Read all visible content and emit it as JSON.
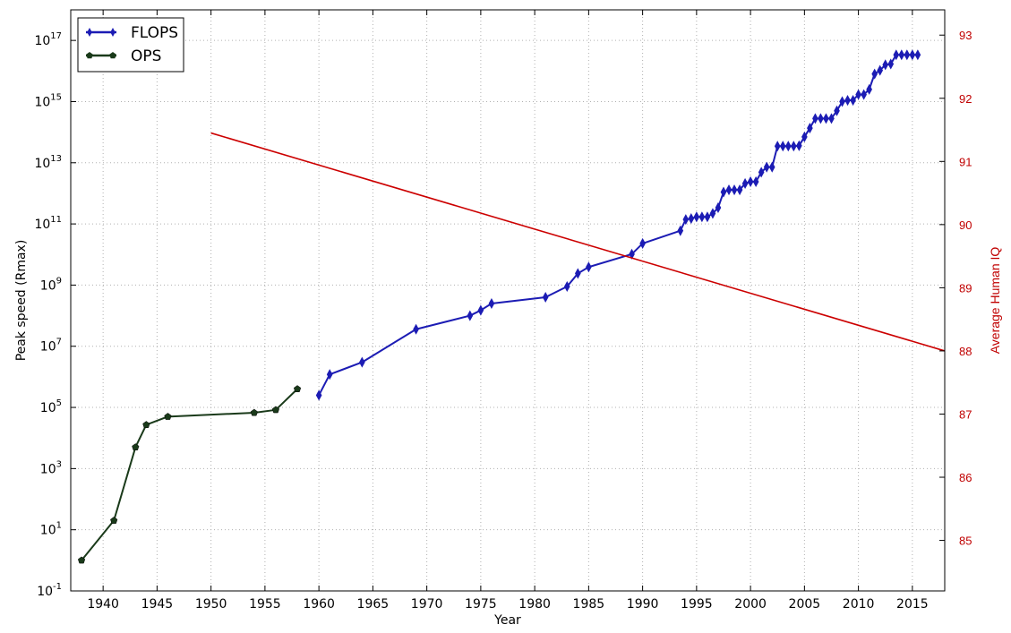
{
  "chart_data": {
    "type": "line",
    "xlabel": "Year",
    "ylabel": "Peak speed (Rmax)",
    "y2label": "Average Human IQ",
    "xlim": [
      1937,
      2018
    ],
    "ylim_log10": [
      -1,
      18
    ],
    "y2lim": [
      84.2,
      93.4
    ],
    "x_ticks": [
      1940,
      1945,
      1950,
      1955,
      1960,
      1965,
      1970,
      1975,
      1980,
      1985,
      1990,
      1995,
      2000,
      2005,
      2010,
      2015
    ],
    "y_ticks_log10": [
      -1,
      1,
      3,
      5,
      7,
      9,
      11,
      13,
      15,
      17
    ],
    "y2_ticks": [
      85,
      86,
      87,
      88,
      89,
      90,
      91,
      92,
      93
    ],
    "y_scale": "log",
    "grid": true,
    "legend_position": "top-left",
    "series": [
      {
        "name": "FLOPS",
        "color": "#1c1cb4",
        "marker": "diamond",
        "axis": "left",
        "points": [
          [
            1960,
            250000
          ],
          [
            1961,
            1200000
          ],
          [
            1964,
            3000000
          ],
          [
            1969,
            36000000
          ],
          [
            1974,
            100000000
          ],
          [
            1975,
            150000000
          ],
          [
            1976,
            250000000
          ],
          [
            1981,
            400000000
          ],
          [
            1983,
            900000000
          ],
          [
            1984,
            2400000000
          ],
          [
            1985,
            3900000000
          ],
          [
            1989,
            10300000000
          ],
          [
            1990,
            23000000000
          ],
          [
            1993.5,
            60000000000
          ],
          [
            1994,
            140000000000
          ],
          [
            1994.5,
            150000000000
          ],
          [
            1995,
            170000000000
          ],
          [
            1995.5,
            170000000000
          ],
          [
            1996,
            170000000000
          ],
          [
            1996.5,
            220000000000
          ],
          [
            1997,
            340000000000
          ],
          [
            1997.5,
            1100000000000
          ],
          [
            1998,
            1300000000000
          ],
          [
            1998.5,
            1300000000000
          ],
          [
            1999,
            1300000000000
          ],
          [
            1999.5,
            2100000000000
          ],
          [
            2000,
            2400000000000
          ],
          [
            2000.5,
            2400000000000
          ],
          [
            2001,
            4900000000000
          ],
          [
            2001.5,
            7200000000000
          ],
          [
            2002,
            7200000000000
          ],
          [
            2002.5,
            35000000000000
          ],
          [
            2003,
            35000000000000
          ],
          [
            2003.5,
            35000000000000
          ],
          [
            2004,
            35000000000000
          ],
          [
            2004.5,
            36000000000000
          ],
          [
            2005,
            70000000000000
          ],
          [
            2005.5,
            136000000000000
          ],
          [
            2006,
            280000000000000
          ],
          [
            2006.5,
            280000000000000
          ],
          [
            2007,
            280000000000000
          ],
          [
            2007.5,
            280000000000000
          ],
          [
            2008,
            500000000000000
          ],
          [
            2008.5,
            1000000000000000
          ],
          [
            2009,
            1100000000000000
          ],
          [
            2009.5,
            1100000000000000
          ],
          [
            2010,
            1700000000000000
          ],
          [
            2010.5,
            1700000000000000
          ],
          [
            2011,
            2500000000000000
          ],
          [
            2011.5,
            8000000000000000
          ],
          [
            2012,
            10500000000000000
          ],
          [
            2012.5,
            16000000000000000
          ],
          [
            2013,
            17000000000000000
          ],
          [
            2013.5,
            33800000000000000
          ],
          [
            2014,
            33800000000000000
          ],
          [
            2014.5,
            33800000000000000
          ],
          [
            2015,
            33800000000000000
          ],
          [
            2015.5,
            33800000000000000
          ]
        ]
      },
      {
        "name": "OPS",
        "color": "#1a3a1a",
        "marker": "pentagon",
        "axis": "left",
        "points": [
          [
            1938,
            1
          ],
          [
            1941,
            20
          ],
          [
            1943,
            5000
          ],
          [
            1944,
            27000
          ],
          [
            1946,
            50000
          ],
          [
            1954,
            67000
          ],
          [
            1956,
            83000
          ],
          [
            1958,
            400000
          ]
        ]
      },
      {
        "name": "",
        "color": "#cc0000",
        "marker": "none",
        "axis": "right",
        "points": [
          [
            1950,
            91.45
          ],
          [
            2018,
            88.0
          ]
        ]
      }
    ]
  }
}
